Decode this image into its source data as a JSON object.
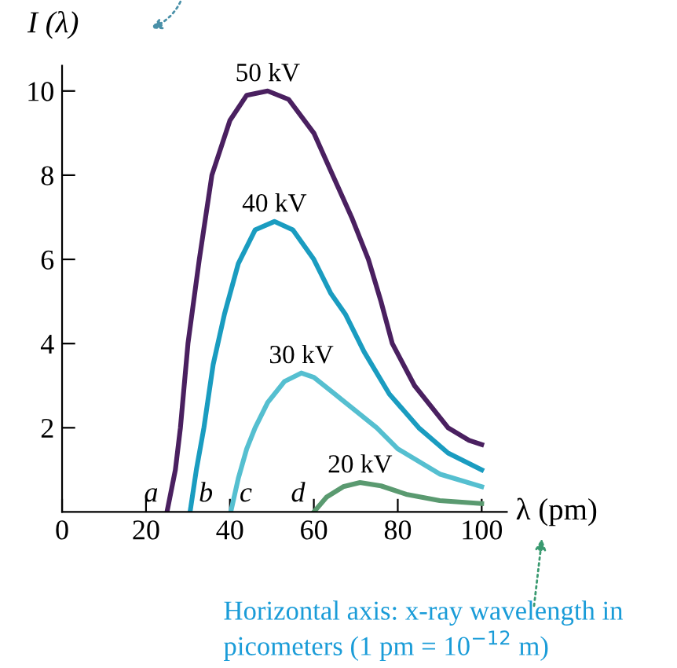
{
  "chart_data": {
    "type": "line",
    "xlabel": "λ (pm)",
    "ylabel": "I (λ)",
    "xlim": [
      0,
      106
    ],
    "ylim": [
      0,
      10.6
    ],
    "xticks": [
      0,
      20,
      40,
      60,
      80,
      100
    ],
    "yticks": [
      2,
      4,
      6,
      8,
      10
    ],
    "grid": false,
    "legend": false,
    "marker": "none",
    "line_style": "solid",
    "series": [
      {
        "name": "50 kV",
        "color": "#4a2060",
        "x": [
          25,
          27,
          28.2,
          30,
          32.7,
          35.7,
          40,
          44,
          49,
          54,
          60,
          64.5,
          69,
          73,
          76,
          78.7,
          84,
          92,
          97,
          100
        ],
        "values": [
          0,
          1,
          2,
          4,
          6,
          8,
          9.3,
          9.9,
          10,
          9.8,
          9,
          8,
          7,
          6,
          5,
          4,
          3,
          2,
          1.7,
          1.6
        ]
      },
      {
        "name": "40 kV",
        "color": "#1a9cc0",
        "x": [
          30.5,
          32,
          33.8,
          36,
          38.7,
          42,
          46,
          50.6,
          55,
          60,
          64,
          67.5,
          72,
          78,
          85,
          92,
          100
        ],
        "values": [
          0,
          1,
          2,
          3.5,
          4.7,
          5.9,
          6.7,
          6.9,
          6.7,
          6,
          5.2,
          4.7,
          3.8,
          2.8,
          2,
          1.4,
          1.0
        ]
      },
      {
        "name": "30 kV",
        "color": "#55bfd0",
        "x": [
          40.2,
          42,
          44,
          46,
          49,
          53,
          57,
          60,
          65,
          70,
          75,
          80,
          90,
          100
        ],
        "values": [
          0,
          0.8,
          1.5,
          2,
          2.6,
          3.1,
          3.3,
          3.2,
          2.8,
          2.4,
          2,
          1.5,
          0.9,
          0.6
        ]
      },
      {
        "name": "20 kV",
        "color": "#5a9a70",
        "x": [
          60,
          63,
          67,
          71,
          76,
          82,
          90,
          100
        ],
        "values": [
          0,
          0.35,
          0.6,
          0.7,
          0.62,
          0.42,
          0.27,
          0.2
        ]
      }
    ],
    "annotations": [
      {
        "text": "a",
        "x": 25,
        "y": 0
      },
      {
        "text": "b",
        "x": 30.5,
        "y": 0
      },
      {
        "text": "c",
        "x": 40.2,
        "y": 0
      },
      {
        "text": "d",
        "x": 60,
        "y": 0
      },
      "Horizontal axis: x-ray wavelength in picometers (1 pm = 10$^{−12}$ m)"
    ]
  }
}
